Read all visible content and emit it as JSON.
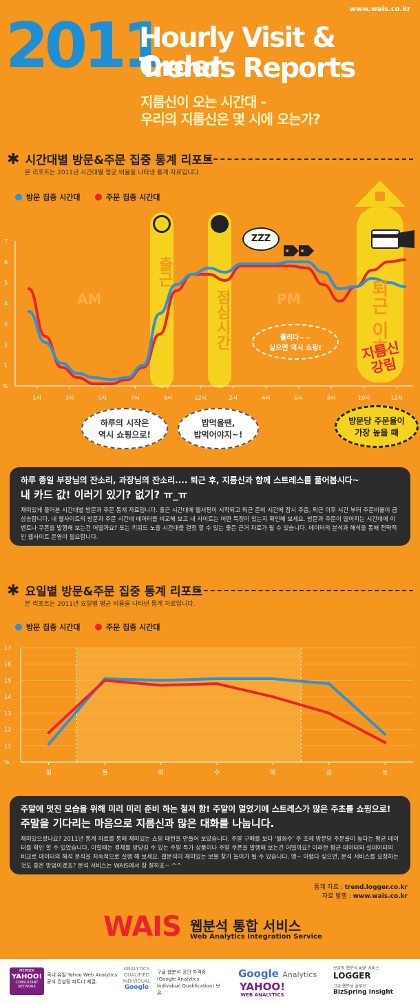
{
  "header": {
    "site": "www.wais.co.kr",
    "year": "2011",
    "title_line1": "Hourly Visit & Order",
    "title_line2": "Trends Reports",
    "subtitle_line1": "지름신이 오는 시간대 -",
    "subtitle_line2": "우리의 지름신은 몇 시에 오는가?"
  },
  "section1": {
    "heading": "시간대별 방문&주문 집중 통계 리포트",
    "note": "본 리포트는 2011년 시간대별 평균 비율을 나타낸 통계 자료입니다.",
    "legend_visit": "방문 집중 시간대",
    "legend_order": "주문 집중 시간대",
    "am": "AM",
    "pm": "PM",
    "pill_commute": "출근",
    "pill_lunch": "점심시간",
    "pill_leave": "퇴근 이후",
    "burst": "지름신 강림",
    "bubble_morning": [
      "하루의 시작은",
      "역시 쇼핑으로!"
    ],
    "bubble_lunch": [
      "밥먹을땐,",
      "밥먹어야지~!"
    ],
    "bubble_sleepy": [
      "졸리다~~",
      "싶으면 역시 쇼핑!"
    ],
    "bubble_peak": [
      "방문당 주문율이",
      "가장 높을 때"
    ],
    "zzz": "ZZZ",
    "box_line1": "하루 종일 부장님의 잔소리, 과장님의 잔소리.... 퇴근 후, 지름신과 함께 스트레스를 풀어봅시다~",
    "box_line2": "내 카드 값! 이러기 있기? 없기? ㅠ_ㅠ",
    "box_body": "재미있게 풀어본 시간대별 방문과 주문 통계 자료입니다. 출근 시간대에 웹서핑이 시작되고 퇴근 준비 시간에 잠시 주춤, 퇴근 이후 시간 부터 주문비율이 급 상승합니다. 내 웹사이트의 방문과 주문 시간대 데이터를 비교해 보고 내 사이트는 어떤 특징이 있는지 확인해 보세요. 방문과 주문이 떨어지는 시간대에 이벤트나 쿠폰을 발행해 보는건 어떨까요? 또는 키워드 노출 시간대를 결정 할 수 있는 좋은 근거 자료가 될 수 있습니다. 데이터의 분석과 해석을 통해 전략적인 웹사이트 운영이 필요합니다."
  },
  "section2": {
    "heading": "요일별 방문&주문 집중 통계 리포트",
    "note": "본 리포트는 2011년 요일별 평균 비율을 나타낸 통계 자료입니다.",
    "legend_visit": "방문 집중 시간대",
    "legend_order": "주문 집중 시간대",
    "box_line1": "주말에 멋진 모습을 위해 미리 미리 준비 하는 철저 함! 주말이 멀었기에 스트레스가 많은 주초를 쇼핑으로!",
    "box_line2": "주말을 기다리는 마음으로 지름신과 많은 대화를 나눕니다.",
    "box_body": "재미있으셨나요? 2011년 통계 자료를 통해 재미있는 쇼핑 패턴을 만들어 보았습니다. 주말 구매를 보다 '월화수' 주 초에 방문당 주문율이 높다는 평균 데이터를 확인 할 수 있었습니다. 이럴때는 결제를 망당길 수 있는 주말 특가 상품이나 주말 쿠폰을 발행해 보는건 어떨까요? 이러한 평균 데이터와 실데이터의 비교로 데이터의 해석 분석을 지속적으로 실행 해 보세요. 웹분석이 재미있는 보물 찾기 놀이가 될 수 있습니다. 엥~ 어렵다 싶으면, 분석 서비스를 요청하는 것도 좋은 방법이겠죠? 분석 서비스는 WAIS에서 참 잘하죠~ ^^"
  },
  "source": {
    "line1_label": "통계 자료 : ",
    "line1_value": "trend.logger.co.kr",
    "line2_label": "자료 발행 : ",
    "line2_value": "www.wais.co.kr"
  },
  "brand": {
    "name": "WAIS",
    "korean": "웹분석 통합 서비스",
    "english": "Web Analytics Integration Service"
  },
  "footer": {
    "yahoo_badge": "YAHOO!",
    "yahoo_badge_sub": "CONSULTANT NETWORK",
    "yahoo_badge_top": "MEMBER",
    "yahoo_text": "국내 유일 Yahoo Web Analytics 공식 컨설팅 파트너 체결.",
    "gaiq_lines": [
      "ANALYTICS",
      "QUALIFIED",
      "INDIVIDUAL"
    ],
    "gaiq_google": "Google",
    "gaiq_text": "구글 웹분석 공인 자격증 (Google Analytics Individual Qualification) 보유.",
    "ga_logo_google": "Google",
    "ga_logo_analytics": "Analytics",
    "ywa_logo": "YAHOO!",
    "ywa_sub": "WEB ANALYTICS",
    "logger_caption": "보급형 웹분석 ASP 서비스",
    "logger_logo": "LOGGER",
    "insight_caption": "고급 웹분석 솔루션",
    "insight_logo": "BizSpring Insight"
  },
  "colors": {
    "visit": "#2e93d6",
    "order": "#e8262a",
    "pill": "#f5d21e",
    "bg": "#f5961e"
  },
  "chart_data": [
    {
      "type": "line",
      "x_unit": "hour",
      "categories": [
        "1시",
        "3시",
        "5시",
        "7시",
        "9시",
        "12시",
        "2시",
        "4시",
        "6시",
        "8시",
        "10시",
        "12시"
      ],
      "ylim": [
        0,
        7
      ],
      "yticks": [
        "1",
        "2",
        "3",
        "4",
        "5",
        "6",
        "7"
      ],
      "ybase_label": "%",
      "series": [
        {
          "name": "방문 집중 시간대",
          "color": "#2e93d6",
          "x": [
            0,
            1,
            2,
            3,
            4,
            5,
            6,
            7,
            8,
            9,
            10,
            11,
            12,
            13,
            14,
            15,
            16,
            17,
            18,
            19,
            20,
            21,
            22,
            23
          ],
          "values": [
            3.6,
            2.1,
            1.1,
            0.6,
            0.4,
            0.3,
            0.4,
            1.0,
            3.5,
            4.9,
            5.4,
            5.7,
            5.5,
            5.9,
            5.9,
            5.9,
            6.0,
            6.0,
            5.5,
            4.7,
            4.8,
            5.2,
            5.0,
            4.8
          ]
        },
        {
          "name": "주문 집중 시간대",
          "color": "#e8262a",
          "x": [
            0,
            1,
            2,
            3,
            4,
            5,
            6,
            7,
            8,
            9,
            10,
            11,
            12,
            13,
            14,
            15,
            16,
            17,
            18,
            19,
            20,
            21,
            22,
            23
          ],
          "values": [
            4.7,
            2.4,
            0.9,
            0.4,
            0.1,
            0.1,
            0.3,
            0.9,
            2.5,
            4.6,
            5.4,
            5.4,
            5.1,
            5.8,
            5.8,
            5.8,
            5.8,
            5.7,
            4.9,
            4.1,
            4.8,
            5.6,
            6.0,
            6.1
          ]
        }
      ]
    },
    {
      "type": "line",
      "categories": [
        "일",
        "월",
        "화",
        "수",
        "목",
        "금",
        "토"
      ],
      "ylim": [
        10,
        17
      ],
      "yticks": [
        "11",
        "12",
        "13",
        "14",
        "15",
        "16",
        "17"
      ],
      "ybase_label": "%",
      "series": [
        {
          "name": "방문 집중 시간대",
          "color": "#2e93d6",
          "values": [
            11.1,
            15.1,
            15.0,
            15.1,
            15.1,
            14.8,
            11.7
          ]
        },
        {
          "name": "주문 집중 시간대",
          "color": "#e8262a",
          "values": [
            11.8,
            15.0,
            14.7,
            14.8,
            14.0,
            13.0,
            11.2
          ]
        }
      ]
    }
  ]
}
